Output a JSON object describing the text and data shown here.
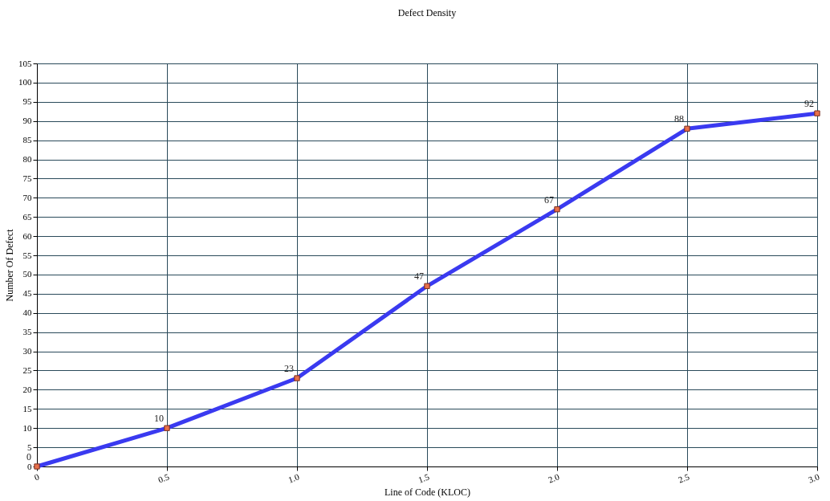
{
  "chart_data": {
    "type": "line",
    "title": "Defect Density",
    "xlabel": "Line of Code (KLOC)",
    "ylabel": "Number Of Defect",
    "x": [
      0,
      0.5,
      1,
      1.5,
      2,
      2.5,
      3
    ],
    "series": [
      {
        "color": "#3a3af0",
        "values": [
          0,
          10,
          23,
          47,
          67,
          88,
          92
        ]
      }
    ],
    "xlim": [
      0,
      3
    ],
    "ylim": [
      0,
      105
    ],
    "xticks": [
      0,
      {
        "value": 0.5,
        "label": "0.5"
      },
      {
        "value": 1,
        "label": "1.0"
      },
      {
        "value": 1.5,
        "label": "1.5"
      },
      {
        "value": 2,
        "label": "2.0"
      },
      {
        "value": 2.5,
        "label": "2.5"
      },
      {
        "value": 3,
        "label": "3.0"
      }
    ],
    "yticks": [
      0,
      5,
      10,
      15,
      20,
      25,
      30,
      35,
      40,
      45,
      50,
      55,
      60,
      65,
      70,
      75,
      80,
      85,
      90,
      95,
      100,
      105
    ],
    "grid": true,
    "marker": "square",
    "line_style": "solid",
    "data_labels": true
  }
}
